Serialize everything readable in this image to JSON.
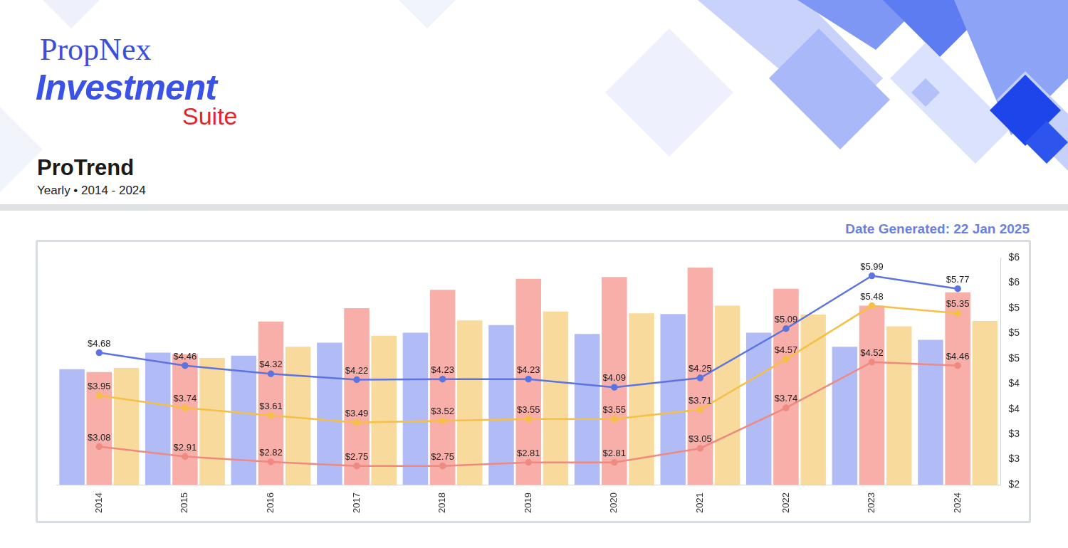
{
  "header": {
    "logo": [
      "PropNex",
      "Investment",
      "Suite"
    ]
  },
  "chart_data": {
    "type": "bar",
    "title": "ProTrend",
    "subtitle": "Yearly • 2014 - 2024",
    "annotations": [
      "Date Generated: 22 Jan 2025"
    ],
    "categories": [
      "2014",
      "2015",
      "2016",
      "2017",
      "2018",
      "2019",
      "2020",
      "2021",
      "2022",
      "2023",
      "2024"
    ],
    "series": [
      {
        "type": "bar",
        "color": "#adb7f6",
        "values": [
          4.4,
          4.68,
          4.63,
          4.85,
          5.02,
          5.15,
          5.0,
          5.34,
          5.02,
          4.78,
          4.9
        ]
      },
      {
        "type": "bar",
        "color": "#f8aaa4",
        "values": [
          4.35,
          4.65,
          5.21,
          5.44,
          5.75,
          5.94,
          5.97,
          6.13,
          5.77,
          5.48,
          5.71
        ]
      },
      {
        "type": "bar",
        "color": "#f8d898",
        "values": [
          4.42,
          4.59,
          4.78,
          4.97,
          5.23,
          5.38,
          5.35,
          5.48,
          5.33,
          5.13,
          5.22
        ]
      },
      {
        "type": "line",
        "color": "#5b74e0",
        "marker": "circle",
        "line_style": "solid",
        "data_labels": true,
        "values": [
          4.68,
          4.46,
          4.32,
          4.22,
          4.23,
          4.23,
          4.09,
          4.25,
          5.09,
          5.99,
          5.77
        ],
        "value_labels": [
          "$4.68",
          "$4.46",
          "$4.32",
          "$4.22",
          "$4.23",
          "$4.23",
          "$4.09",
          "$4.25",
          "$5.09",
          "$5.99",
          "$5.77"
        ]
      },
      {
        "type": "line",
        "color": "#f6bf45",
        "marker": "circle",
        "line_style": "solid",
        "data_labels": true,
        "values": [
          3.95,
          3.74,
          3.61,
          3.49,
          3.52,
          3.55,
          3.55,
          3.71,
          4.57,
          5.48,
          5.35
        ],
        "value_labels": [
          "$3.95",
          "$3.74",
          "$3.61",
          "$3.49",
          "$3.52",
          "$3.55",
          "$3.55",
          "$3.71",
          "$4.57",
          "$5.48",
          "$5.35"
        ]
      },
      {
        "type": "line",
        "color": "#ef8a80",
        "marker": "circle",
        "line_style": "solid",
        "data_labels": true,
        "values": [
          3.08,
          2.91,
          2.82,
          2.75,
          2.75,
          2.81,
          2.81,
          3.05,
          3.74,
          4.52,
          4.46
        ],
        "value_labels": [
          "$3.08",
          "$2.91",
          "$2.82",
          "$2.75",
          "$2.75",
          "$2.81",
          "$2.81",
          "$3.05",
          "$3.74",
          "$4.52",
          "$4.46"
        ]
      }
    ],
    "ylim": [
      2.43,
      6.3
    ],
    "yticks": [
      {
        "value": 2.43,
        "label": "$2"
      },
      {
        "value": 2.86,
        "label": "$3"
      },
      {
        "value": 3.29,
        "label": "$3"
      },
      {
        "value": 3.72,
        "label": "$4"
      },
      {
        "value": 4.15,
        "label": "$4"
      },
      {
        "value": 4.58,
        "label": "$5"
      },
      {
        "value": 5.01,
        "label": "$5"
      },
      {
        "value": 5.44,
        "label": "$5"
      },
      {
        "value": 5.87,
        "label": "$6"
      },
      {
        "value": 6.3,
        "label": "$6"
      }
    ],
    "grid": false
  }
}
